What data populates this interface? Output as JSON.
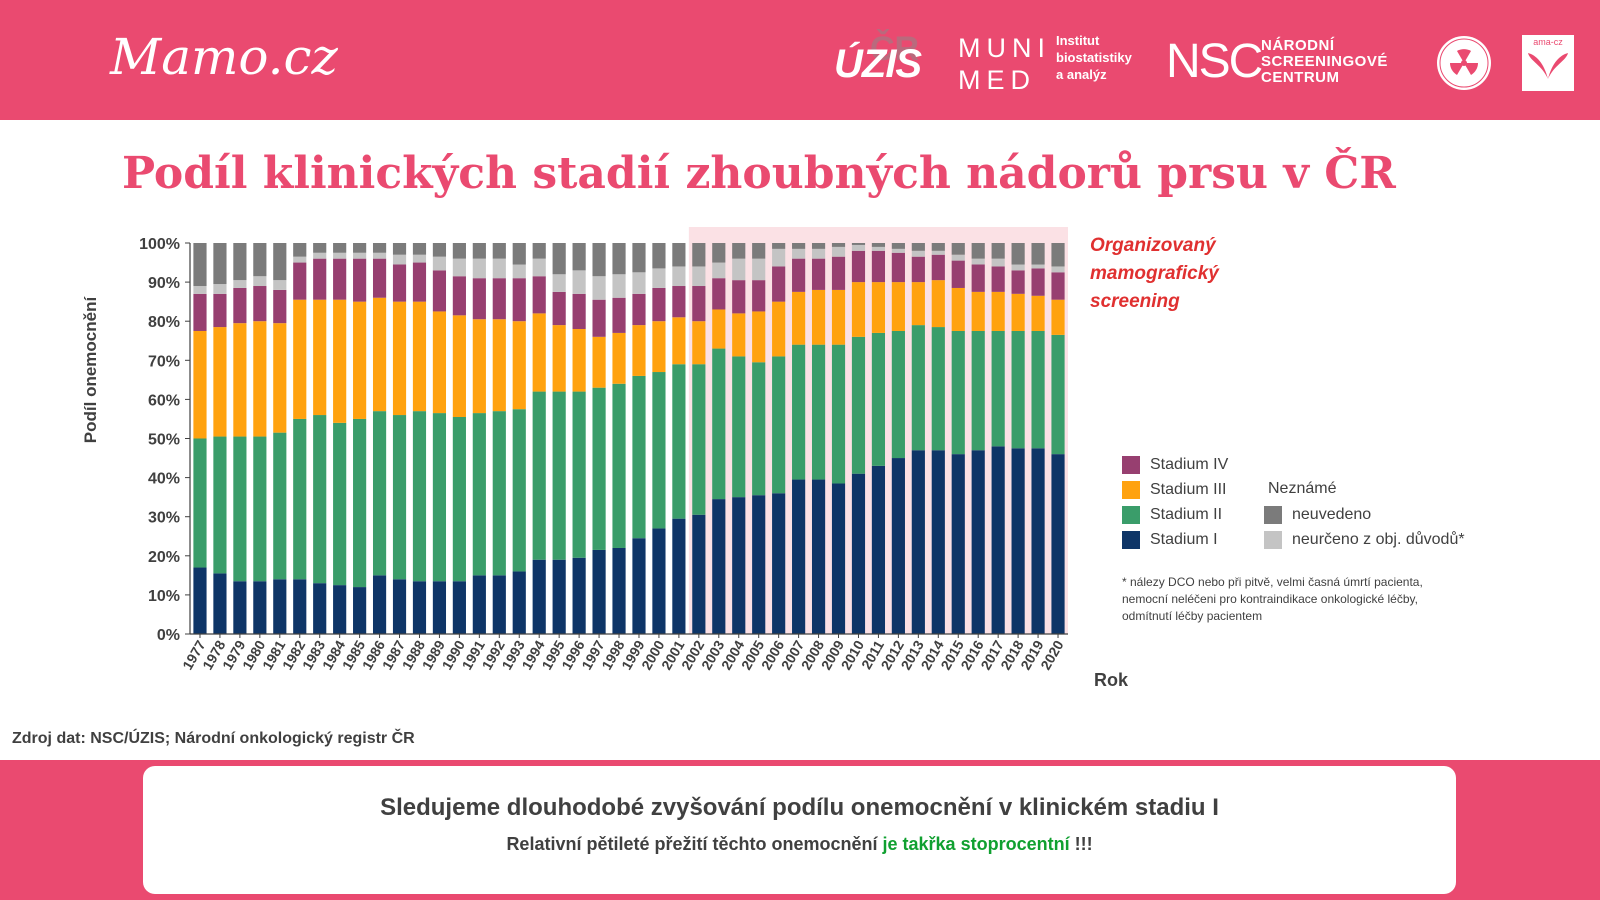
{
  "header": {
    "logo_mamo": "Mamo.cz",
    "logo_uzis": "ÚZIS",
    "logo_muni_line1": "MUNI",
    "logo_muni_line2": "MED",
    "logo_ibis_line1": "Institut",
    "logo_ibis_line2": "biostatistiky",
    "logo_ibis_line3": "a analýz",
    "logo_nsc_mark": "NSC",
    "logo_nsc_line1": "NÁRODNÍ",
    "logo_nsc_line2": "SCREENINGOVÉ",
    "logo_nsc_line3": "CENTRUM",
    "logo_ama": "ama-cz"
  },
  "title": "Podíl klinických stadií zhoubných nádorů prsu v ČR",
  "annotation": [
    "Organizovaný",
    "mamografický",
    "screening"
  ],
  "legend": {
    "stage4": "Stadium IV",
    "stage3": "Stadium III",
    "stage2": "Stadium II",
    "stage1": "Stadium I",
    "unknown_header": "Neznámé",
    "not_stated": "neuvedeno",
    "undetermined": "neurčeno z obj. důvodů*"
  },
  "footnote": "* nálezy DCO nebo při pitvě, velmi časná úmrtí pacienta, nemocní neléčeni pro kontraindikace onkologické léčby, odmítnutí léčby pacientem",
  "source": "Zdroj dat: NSC/ÚZIS; Národní onkologický registr ČR",
  "message": {
    "line1": "Sledujeme dlouhodobé zvyšování podílu onemocnění v klinickém stadiu I",
    "line2_prefix": "Relativní pětileté přežití těchto onemocnění ",
    "line2_highlight": "je takřka stoprocentní",
    "line2_suffix": " !!!"
  },
  "colors": {
    "brand": "#ea4a70",
    "stage1": "#0e3567",
    "stage2": "#3a9d6a",
    "stage3": "#ffa20f",
    "stage4": "#973f70",
    "undetermined": "#c4c4c4",
    "not_stated": "#7b7b7b",
    "screening_band": "#fbe1e5",
    "annotation": "#e03030",
    "highlight": "#10a030"
  },
  "chart_data": {
    "type": "bar",
    "stacked": true,
    "xlabel": "Rok",
    "ylabel": "Podíl onemocnění",
    "ylim": [
      0,
      100
    ],
    "yticks": [
      "0%",
      "10%",
      "20%",
      "30%",
      "40%",
      "50%",
      "60%",
      "70%",
      "80%",
      "90%",
      "100%"
    ],
    "screening_from": "2002",
    "categories": [
      "1977",
      "1978",
      "1979",
      "1980",
      "1981",
      "1982",
      "1983",
      "1984",
      "1985",
      "1986",
      "1987",
      "1988",
      "1989",
      "1990",
      "1991",
      "1992",
      "1993",
      "1994",
      "1995",
      "1996",
      "1997",
      "1998",
      "1999",
      "2000",
      "2001",
      "2002",
      "2003",
      "2004",
      "2005",
      "2006",
      "2007",
      "2008",
      "2009",
      "2010",
      "2011",
      "2012",
      "2013",
      "2014",
      "2015",
      "2016",
      "2017",
      "2018",
      "2019",
      "2020"
    ],
    "series": [
      {
        "name": "Stadium I",
        "color": "#0e3567",
        "values": [
          17,
          15.5,
          13.5,
          13.5,
          14,
          14,
          13,
          12.5,
          12,
          15,
          14,
          13.5,
          13.5,
          13.5,
          15,
          15,
          16,
          19,
          19,
          19.5,
          21.5,
          22,
          24.5,
          27,
          29.5,
          30.5,
          34.5,
          35,
          35.5,
          36,
          39.5,
          39.5,
          38.5,
          41,
          43,
          45,
          47,
          47,
          46,
          47,
          48,
          47.5,
          47.5,
          46
        ]
      },
      {
        "name": "Stadium II",
        "color": "#3a9d6a",
        "values": [
          33,
          35,
          37,
          37,
          37.5,
          41,
          43,
          41.5,
          43,
          42,
          42,
          43.5,
          43,
          42,
          41.5,
          42,
          41.5,
          43,
          43,
          42.5,
          41.5,
          42,
          41.5,
          40,
          39.5,
          38.5,
          38.5,
          36,
          34,
          35,
          34.5,
          34.5,
          35.5,
          35,
          34,
          32.5,
          32,
          31.5,
          31.5,
          30.5,
          29.5,
          30,
          30,
          30.5
        ]
      },
      {
        "name": "Stadium III",
        "color": "#ffa20f",
        "values": [
          27.5,
          28,
          29,
          29.5,
          28,
          30.5,
          29.5,
          31.5,
          30,
          29,
          29,
          28,
          26,
          26,
          24,
          23.5,
          22.5,
          20,
          17,
          16,
          13,
          13,
          13,
          13,
          12,
          11,
          10,
          11,
          13,
          14,
          13.5,
          14,
          14,
          14,
          13,
          12.5,
          11,
          12,
          11,
          10,
          10,
          9.5,
          9,
          9
        ]
      },
      {
        "name": "Stadium IV",
        "color": "#973f70",
        "values": [
          9.5,
          8.5,
          9,
          9,
          8.5,
          9.5,
          10.5,
          10.5,
          11,
          10,
          9.5,
          10,
          10.5,
          10,
          10.5,
          10.5,
          11,
          9.5,
          8.5,
          9,
          9.5,
          9,
          8,
          8.5,
          8,
          9,
          8,
          8.5,
          8,
          9,
          8.5,
          8,
          8.5,
          8,
          8,
          7.5,
          6.5,
          6.5,
          7,
          7,
          6.5,
          6,
          7,
          7
        ]
      },
      {
        "name": "neurčeno z obj. důvodů*",
        "color": "#c4c4c4",
        "values": [
          2,
          2.5,
          2,
          2.5,
          2.5,
          1.5,
          1.5,
          1.5,
          1.5,
          1.5,
          2.5,
          2,
          3.5,
          4.5,
          5,
          5,
          3.5,
          4.5,
          4.5,
          6,
          6,
          6,
          5.5,
          5,
          5,
          5,
          4,
          5.5,
          5.5,
          4.5,
          2.5,
          2.5,
          2.5,
          1.5,
          1,
          1,
          1.5,
          1,
          1.5,
          1.5,
          2,
          1.5,
          1,
          1.5
        ]
      },
      {
        "name": "neuvedeno",
        "color": "#7b7b7b",
        "values": [
          11,
          10.5,
          9.5,
          8.5,
          9.5,
          3.5,
          2.5,
          2.5,
          2.5,
          2.5,
          3,
          3,
          3.5,
          4,
          4,
          4,
          5.5,
          4,
          8,
          7,
          8.5,
          8,
          7.5,
          6.5,
          6,
          6,
          5,
          4,
          4,
          1.5,
          1.5,
          1.5,
          1,
          0.5,
          1,
          1.5,
          2,
          2,
          3,
          4,
          4,
          5.5,
          5.5,
          6
        ]
      }
    ]
  }
}
